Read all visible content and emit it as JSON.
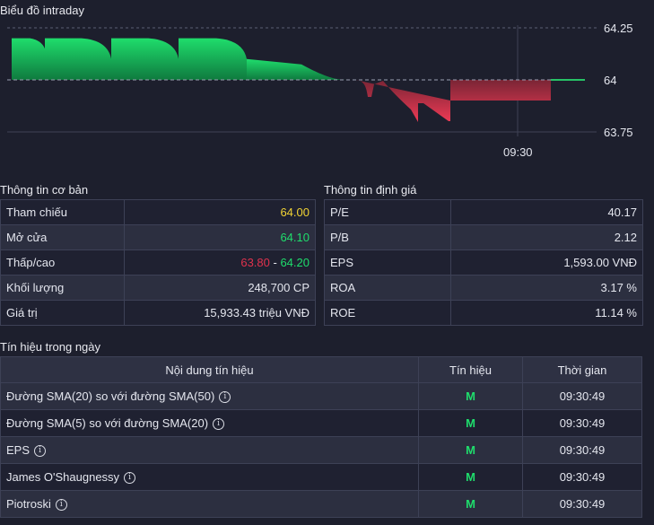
{
  "chart_section": {
    "title": "Biểu đồ intraday",
    "chart_data": {
      "type": "area",
      "baseline": 64,
      "y_ticks": [
        "64.25",
        "64",
        "63.75"
      ],
      "ylim": [
        63.75,
        64.25
      ],
      "x_tick": "09:30",
      "segments": [
        {
          "from": 13,
          "to": 50,
          "start": 64.2,
          "end": 64.15
        },
        {
          "from": 50,
          "to": 124,
          "start": 64.2,
          "end": 64.1
        },
        {
          "from": 124,
          "to": 199,
          "start": 64.2,
          "end": 64.1
        },
        {
          "from": 199,
          "to": 275,
          "start": 64.2,
          "end": 64.1
        },
        {
          "from": 275,
          "to": 386,
          "start": 64.1,
          "end": 64.0
        }
      ],
      "colors": {
        "up": "#19c35a",
        "down": "#e0364f",
        "baseline": "#9aa0b4"
      }
    }
  },
  "basic_info": {
    "title": "Thông tin cơ bản",
    "rows": [
      {
        "label": "Tham chiếu",
        "value": "64.00"
      },
      {
        "label": "Mở cửa",
        "value": "64.10"
      },
      {
        "label": "Thấp/cao",
        "low": "63.80",
        "sep": " - ",
        "high": "64.20"
      },
      {
        "label": "Khối lượng",
        "value": "248,700 CP"
      },
      {
        "label": "Giá trị",
        "value": "15,933.43 triệu VNĐ"
      }
    ]
  },
  "valuation_info": {
    "title": "Thông tin định giá",
    "rows": [
      {
        "label": "P/E",
        "value": "40.17"
      },
      {
        "label": "P/B",
        "value": "2.12"
      },
      {
        "label": "EPS",
        "value": "1,593.00 VNĐ"
      },
      {
        "label": "ROA",
        "value": "3.17 %"
      },
      {
        "label": "ROE",
        "value": "11.14 %"
      }
    ]
  },
  "signals": {
    "title": "Tín hiệu trong ngày",
    "headers": {
      "content": "Nội dung tín hiệu",
      "signal": "Tín hiệu",
      "time": "Thời gian"
    },
    "info_icon": "info-icon",
    "rows": [
      {
        "content": "Đường SMA(20) so với đường SMA(50)",
        "signal": "M",
        "time": "09:30:49"
      },
      {
        "content": "Đường SMA(5) so với đường SMA(20)",
        "signal": "M",
        "time": "09:30:49"
      },
      {
        "content": "EPS",
        "signal": "M",
        "time": "09:30:49"
      },
      {
        "content": "James O'Shaugnessy",
        "signal": "M",
        "time": "09:30:49"
      },
      {
        "content": "Piotroski",
        "signal": "M",
        "time": "09:30:49"
      }
    ]
  }
}
